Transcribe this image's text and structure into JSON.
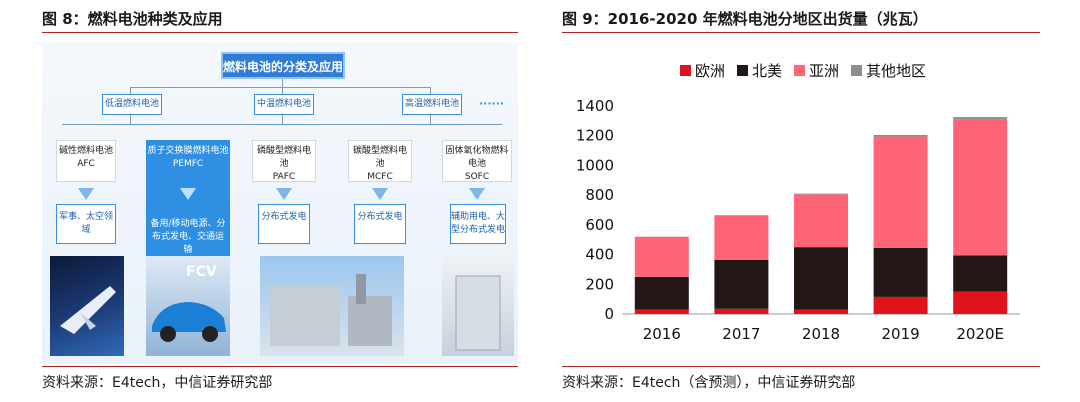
{
  "left": {
    "title": "图 8：燃料电池种类及应用",
    "source": "资料来源：E4tech，中信证券研究部",
    "diagram": {
      "main": "燃料电池的分类及应用",
      "categories": [
        "低温燃料电池",
        "中温燃料电池",
        "高温燃料电池"
      ],
      "more": "······",
      "types": [
        {
          "name": "碱性燃料电池",
          "abbr": "AFC",
          "app": "军事、太空领域"
        },
        {
          "name": "质子交换膜燃料电池",
          "abbr": "PEMFC",
          "app": "备用/移动电源、分布式发电、交通运输"
        },
        {
          "name": "磷酸型燃料电池",
          "abbr": "PAFC",
          "app": "分布式发电"
        },
        {
          "name": "碳酸型燃料电池",
          "abbr": "MCFC",
          "app": "分布式发电"
        },
        {
          "name": "固体氧化物燃料电池",
          "abbr": "SOFC",
          "app": "辅助用电、大型分布式发电"
        }
      ],
      "photo_label": "FCV"
    }
  },
  "right": {
    "title": "图 9：2016-2020 年燃料电池分地区出货量（兆瓦）",
    "source": "资料来源：E4tech（含预测），中信证券研究部"
  },
  "chart_data": {
    "type": "bar",
    "stacked": true,
    "categories": [
      "2016",
      "2017",
      "2018",
      "2019",
      "2020E"
    ],
    "series": [
      {
        "name": "欧洲",
        "color": "#e0121b",
        "values": [
          30,
          35,
          30,
          115,
          150
        ]
      },
      {
        "name": "北美",
        "color": "#231815",
        "values": [
          220,
          330,
          420,
          330,
          245
        ]
      },
      {
        "name": "亚洲",
        "color": "#ff6577",
        "values": [
          270,
          295,
          355,
          750,
          915
        ]
      },
      {
        "name": "其他地区",
        "color": "#8c8c8c",
        "values": [
          0,
          5,
          5,
          10,
          15
        ]
      }
    ],
    "ylim": [
      0,
      1400
    ],
    "yticks": [
      0,
      200,
      400,
      600,
      800,
      1000,
      1200,
      1400
    ],
    "legend": "top"
  }
}
